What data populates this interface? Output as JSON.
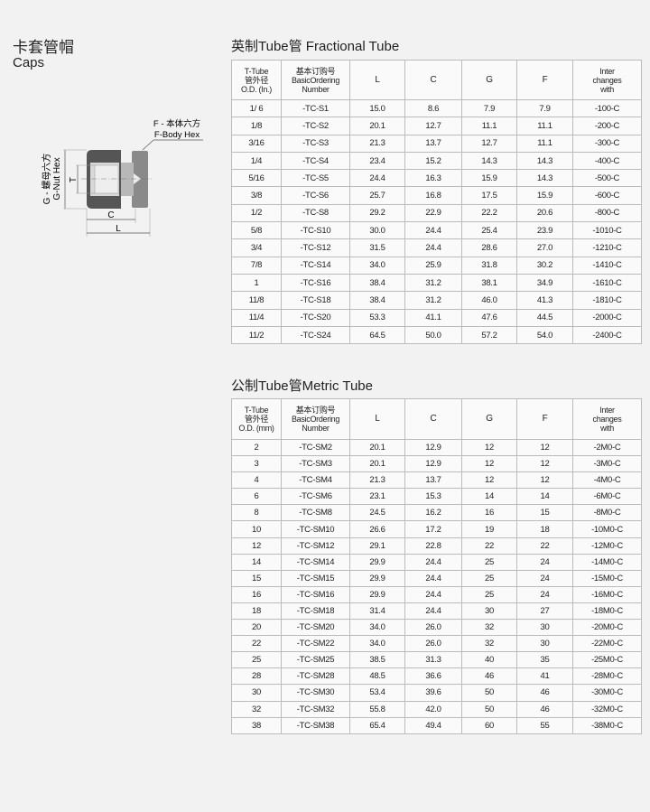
{
  "product": {
    "title_cn": "卡套管帽",
    "title_en": "Caps"
  },
  "diagram": {
    "f_label_cn": "F - 本体六方",
    "f_label_en": "F-Body Hex",
    "g_label_cn": "G - 螺母六方",
    "g_label_en": "G-Nut Hex",
    "t": "T",
    "c": "C",
    "l": "L"
  },
  "fractional": {
    "title": "英制Tube管 Fractional Tube",
    "headers": [
      [
        "T-Tube",
        "管外径",
        "O.D. (In.)"
      ],
      [
        "基本订购号",
        "BasicOrdering",
        "Number"
      ],
      [
        "L"
      ],
      [
        "C"
      ],
      [
        "G"
      ],
      [
        "F"
      ],
      [
        "Inter",
        "changes",
        "with"
      ]
    ],
    "rows": [
      [
        "1/ 6",
        "-TC-S1",
        "15.0",
        "8.6",
        "7.9",
        "7.9",
        "-100-C"
      ],
      [
        "1/8",
        "-TC-S2",
        "20.1",
        "12.7",
        "11.1",
        "11.1",
        "-200-C"
      ],
      [
        "3/16",
        "-TC-S3",
        "21.3",
        "13.7",
        "12.7",
        "11.1",
        "-300-C"
      ],
      [
        "1/4",
        "-TC-S4",
        "23.4",
        "15.2",
        "14.3",
        "14.3",
        "-400-C"
      ],
      [
        "5/16",
        "-TC-S5",
        "24.4",
        "16.3",
        "15.9",
        "14.3",
        "-500-C"
      ],
      [
        "3/8",
        "-TC-S6",
        "25.7",
        "16.8",
        "17.5",
        "15.9",
        "-600-C"
      ],
      [
        "1/2",
        "-TC-S8",
        "29.2",
        "22.9",
        "22.2",
        "20.6",
        "-800-C"
      ],
      [
        "5/8",
        "-TC-S10",
        "30.0",
        "24.4",
        "25.4",
        "23.9",
        "-1010-C"
      ],
      [
        "3/4",
        "-TC-S12",
        "31.5",
        "24.4",
        "28.6",
        "27.0",
        "-1210-C"
      ],
      [
        "7/8",
        "-TC-S14",
        "34.0",
        "25.9",
        "31.8",
        "30.2",
        "-1410-C"
      ],
      [
        "1",
        "-TC-S16",
        "38.4",
        "31.2",
        "38.1",
        "34.9",
        "-1610-C"
      ],
      [
        "11/8",
        "-TC-S18",
        "38.4",
        "31.2",
        "46.0",
        "41.3",
        "-1810-C"
      ],
      [
        "11/4",
        "-TC-S20",
        "53.3",
        "41.1",
        "47.6",
        "44.5",
        "-2000-C"
      ],
      [
        "11/2",
        "-TC-S24",
        "64.5",
        "50.0",
        "57.2",
        "54.0",
        "-2400-C"
      ]
    ]
  },
  "metric": {
    "title": "公制Tube管Metric Tube",
    "headers": [
      [
        "T-Tube",
        "管外径",
        "O.D. (mm)"
      ],
      [
        "基本订购号",
        "BasicOrdering",
        "Number"
      ],
      [
        "L"
      ],
      [
        "C"
      ],
      [
        "G"
      ],
      [
        "F"
      ],
      [
        "Inter",
        "changes",
        "with"
      ]
    ],
    "rows": [
      [
        "2",
        "-TC-SM2",
        "20.1",
        "12.9",
        "12",
        "12",
        "-2M0-C"
      ],
      [
        "3",
        "-TC-SM3",
        "20.1",
        "12.9",
        "12",
        "12",
        "-3M0-C"
      ],
      [
        "4",
        "-TC-SM4",
        "21.3",
        "13.7",
        "12",
        "12",
        "-4M0-C"
      ],
      [
        "6",
        "-TC-SM6",
        "23.1",
        "15.3",
        "14",
        "14",
        "-6M0-C"
      ],
      [
        "8",
        "-TC-SM8",
        "24.5",
        "16.2",
        "16",
        "15",
        "-8M0-C"
      ],
      [
        "10",
        "-TC-SM10",
        "26.6",
        "17.2",
        "19",
        "18",
        "-10M0-C"
      ],
      [
        "12",
        "-TC-SM12",
        "29.1",
        "22.8",
        "22",
        "22",
        "-12M0-C"
      ],
      [
        "14",
        "-TC-SM14",
        "29.9",
        "24.4",
        "25",
        "24",
        "-14M0-C"
      ],
      [
        "15",
        "-TC-SM15",
        "29.9",
        "24.4",
        "25",
        "24",
        "-15M0-C"
      ],
      [
        "16",
        "-TC-SM16",
        "29.9",
        "24.4",
        "25",
        "24",
        "-16M0-C"
      ],
      [
        "18",
        "-TC-SM18",
        "31.4",
        "24.4",
        "30",
        "27",
        "-18M0-C"
      ],
      [
        "20",
        "-TC-SM20",
        "34.0",
        "26.0",
        "32",
        "30",
        "-20M0-C"
      ],
      [
        "22",
        "-TC-SM22",
        "34.0",
        "26.0",
        "32",
        "30",
        "-22M0-C"
      ],
      [
        "25",
        "-TC-SM25",
        "38.5",
        "31.3",
        "40",
        "35",
        "-25M0-C"
      ],
      [
        "28",
        "-TC-SM28",
        "48.5",
        "36.6",
        "46",
        "41",
        "-28M0-C"
      ],
      [
        "30",
        "-TC-SM30",
        "53.4",
        "39.6",
        "50",
        "46",
        "-30M0-C"
      ],
      [
        "32",
        "-TC-SM32",
        "55.8",
        "42.0",
        "50",
        "46",
        "-32M0-C"
      ],
      [
        "38",
        "-TC-SM38",
        "65.4",
        "49.4",
        "60",
        "55",
        "-38M0-C"
      ]
    ]
  }
}
